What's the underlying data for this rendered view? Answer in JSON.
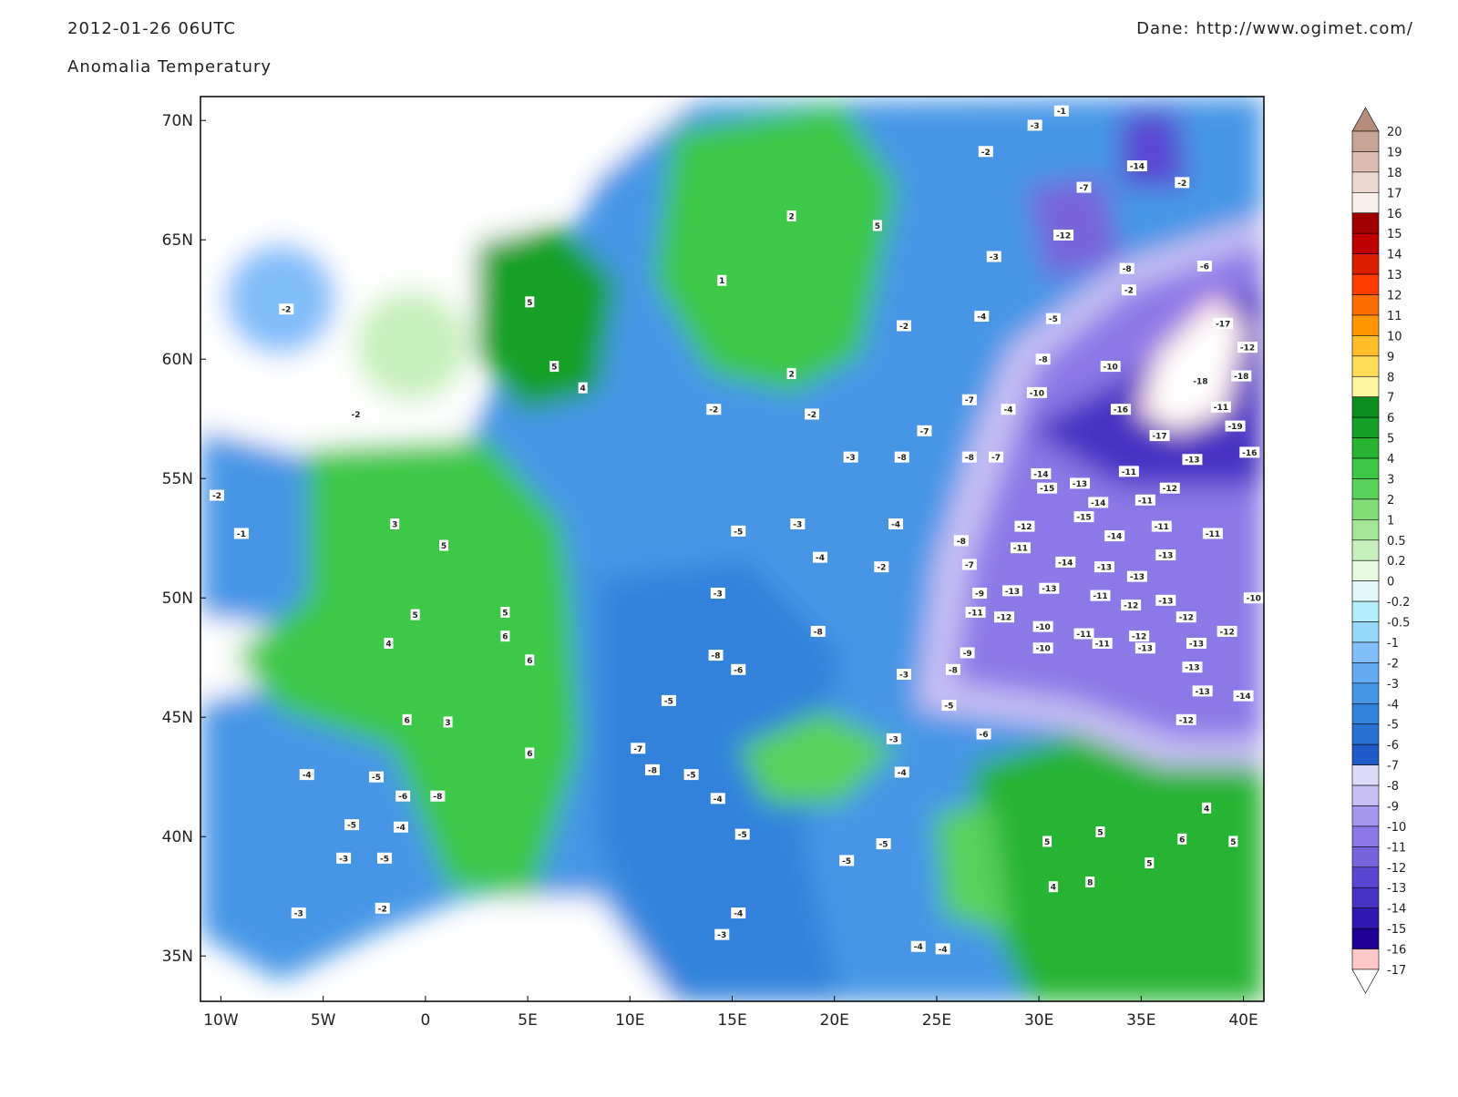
{
  "header": {
    "title": "2012-01-26 06UTC",
    "subtitle": "Anomalia Temperatury",
    "source": "Dane: http://www.ogimet.com/"
  },
  "map": {
    "lonlim": [
      -11,
      41
    ],
    "latlim": [
      33.1,
      71
    ],
    "lonticks": [
      {
        "value": -10,
        "label": "10W"
      },
      {
        "value": -5,
        "label": "5W"
      },
      0,
      {
        "value": 5,
        "label": "5E"
      },
      {
        "value": 10,
        "label": "10E"
      },
      {
        "value": 15,
        "label": "15E"
      },
      {
        "value": 20,
        "label": "20E"
      },
      {
        "value": 25,
        "label": "25E"
      },
      {
        "value": 30,
        "label": "30E"
      },
      {
        "value": 35,
        "label": "35E"
      },
      {
        "value": 40,
        "label": "40E"
      }
    ],
    "latticks": [
      {
        "value": 70,
        "label": "70N"
      },
      {
        "value": 65,
        "label": "65N"
      },
      {
        "value": 60,
        "label": "60N"
      },
      {
        "value": 55,
        "label": "55N"
      },
      {
        "value": 50,
        "label": "50N"
      },
      {
        "value": 45,
        "label": "45N"
      },
      {
        "value": 40,
        "label": "40N"
      },
      {
        "value": 35,
        "label": "35N"
      }
    ],
    "stations": [
      {
        "lon": 34.8,
        "lat": 68.1,
        "value": -14
      },
      {
        "lon": 31.2,
        "lat": 65.2,
        "value": -12
      },
      {
        "lon": 33.5,
        "lat": 59.7,
        "value": -10
      },
      {
        "lon": 37.9,
        "lat": 59.1,
        "value": -18
      },
      {
        "lon": 39.9,
        "lat": 59.3,
        "value": -18
      },
      {
        "lon": 39.0,
        "lat": 61.5,
        "value": -17
      },
      {
        "lon": 40.2,
        "lat": 60.5,
        "value": -12
      },
      {
        "lon": 38.9,
        "lat": 58.0,
        "value": -11
      },
      {
        "lon": 39.6,
        "lat": 57.2,
        "value": -19
      },
      {
        "lon": 34.0,
        "lat": 57.9,
        "value": -16
      },
      {
        "lon": 35.9,
        "lat": 56.8,
        "value": -17
      },
      {
        "lon": 40.3,
        "lat": 56.1,
        "value": -16
      },
      {
        "lon": 37.5,
        "lat": 55.8,
        "value": -13
      },
      {
        "lon": 30.1,
        "lat": 55.2,
        "value": -14
      },
      {
        "lon": 30.4,
        "lat": 54.6,
        "value": -15
      },
      {
        "lon": 32.0,
        "lat": 54.8,
        "value": -13
      },
      {
        "lon": 32.2,
        "lat": 53.4,
        "value": -15
      },
      {
        "lon": 32.9,
        "lat": 54.0,
        "value": -14
      },
      {
        "lon": 34.4,
        "lat": 55.3,
        "value": -11
      },
      {
        "lon": 36.4,
        "lat": 54.6,
        "value": -12
      },
      {
        "lon": 35.2,
        "lat": 54.1,
        "value": -11
      },
      {
        "lon": 33.7,
        "lat": 52.6,
        "value": -14
      },
      {
        "lon": 36.0,
        "lat": 53.0,
        "value": -11
      },
      {
        "lon": 38.5,
        "lat": 52.7,
        "value": -11
      },
      {
        "lon": 36.2,
        "lat": 51.8,
        "value": -13
      },
      {
        "lon": 31.3,
        "lat": 51.5,
        "value": -14
      },
      {
        "lon": 33.2,
        "lat": 51.3,
        "value": -13
      },
      {
        "lon": 34.8,
        "lat": 50.9,
        "value": -13
      },
      {
        "lon": 33.0,
        "lat": 50.1,
        "value": -11
      },
      {
        "lon": 34.5,
        "lat": 49.7,
        "value": -12
      },
      {
        "lon": 36.2,
        "lat": 49.9,
        "value": -13
      },
      {
        "lon": 37.2,
        "lat": 49.2,
        "value": -12
      },
      {
        "lon": 39.2,
        "lat": 48.6,
        "value": -12
      },
      {
        "lon": 40.5,
        "lat": 50.0,
        "value": -10
      },
      {
        "lon": 28.7,
        "lat": 50.3,
        "value": -13
      },
      {
        "lon": 30.5,
        "lat": 50.4,
        "value": -13
      },
      {
        "lon": 28.3,
        "lat": 49.2,
        "value": -12
      },
      {
        "lon": 30.2,
        "lat": 48.8,
        "value": -10
      },
      {
        "lon": 30.2,
        "lat": 47.9,
        "value": -10
      },
      {
        "lon": 32.2,
        "lat": 48.5,
        "value": -11
      },
      {
        "lon": 33.1,
        "lat": 48.1,
        "value": -11
      },
      {
        "lon": 34.9,
        "lat": 48.4,
        "value": -12
      },
      {
        "lon": 35.2,
        "lat": 47.9,
        "value": -13
      },
      {
        "lon": 37.7,
        "lat": 48.1,
        "value": -13
      },
      {
        "lon": 37.5,
        "lat": 47.1,
        "value": -13
      },
      {
        "lon": 38.0,
        "lat": 46.1,
        "value": -13
      },
      {
        "lon": 40.0,
        "lat": 45.9,
        "value": -14
      },
      {
        "lon": 37.2,
        "lat": 44.9,
        "value": -12
      },
      {
        "lon": 29.3,
        "lat": 53.0,
        "value": -12
      },
      {
        "lon": 29.1,
        "lat": 52.1,
        "value": -11
      },
      {
        "lon": 26.9,
        "lat": 49.4,
        "value": -11
      },
      {
        "lon": 27.1,
        "lat": 50.2,
        "value": -9
      },
      {
        "lon": 26.5,
        "lat": 47.7,
        "value": -9
      },
      {
        "lon": 25.8,
        "lat": 47.0,
        "value": -8
      },
      {
        "lon": 26.2,
        "lat": 52.4,
        "value": -8
      },
      {
        "lon": 26.6,
        "lat": 51.4,
        "value": -7
      },
      {
        "lon": 26.6,
        "lat": 55.9,
        "value": -8
      },
      {
        "lon": 27.9,
        "lat": 55.9,
        "value": -7
      },
      {
        "lon": 26.6,
        "lat": 58.3,
        "value": -7
      },
      {
        "lon": 24.4,
        "lat": 57.0,
        "value": -7
      },
      {
        "lon": 23.3,
        "lat": 55.9,
        "value": -8
      },
      {
        "lon": 29.9,
        "lat": 58.6,
        "value": -10
      },
      {
        "lon": 30.2,
        "lat": 60.0,
        "value": -8
      },
      {
        "lon": 28.5,
        "lat": 57.9,
        "value": -4
      },
      {
        "lon": 27.2,
        "lat": 61.8,
        "value": -4
      },
      {
        "lon": 27.8,
        "lat": 64.3,
        "value": -3
      },
      {
        "lon": 30.7,
        "lat": 61.7,
        "value": -5
      },
      {
        "lon": 27.4,
        "lat": 68.7,
        "value": -2
      },
      {
        "lon": 31.1,
        "lat": 70.4,
        "value": -1
      },
      {
        "lon": 29.8,
        "lat": 69.8,
        "value": -3
      },
      {
        "lon": 32.2,
        "lat": 67.2,
        "value": -7
      },
      {
        "lon": 37.0,
        "lat": 67.4,
        "value": -2
      },
      {
        "lon": 34.4,
        "lat": 62.9,
        "value": -2
      },
      {
        "lon": 34.3,
        "lat": 63.8,
        "value": -8
      },
      {
        "lon": 38.1,
        "lat": 63.9,
        "value": -6
      },
      {
        "lon": 23.4,
        "lat": 61.4,
        "value": -2
      },
      {
        "lon": 20.8,
        "lat": 55.9,
        "value": -3
      },
      {
        "lon": 18.9,
        "lat": 57.7,
        "value": -2
      },
      {
        "lon": 14.1,
        "lat": 57.9,
        "value": -2
      },
      {
        "lon": 17.9,
        "lat": 66.0,
        "value": 2
      },
      {
        "lon": 22.1,
        "lat": 65.6,
        "value": 5
      },
      {
        "lon": 14.5,
        "lat": 63.3,
        "value": 1
      },
      {
        "lon": 17.9,
        "lat": 59.4,
        "value": 2
      },
      {
        "lon": 5.1,
        "lat": 62.4,
        "value": 5
      },
      {
        "lon": 6.3,
        "lat": 59.7,
        "value": 5
      },
      {
        "lon": 7.7,
        "lat": 58.8,
        "value": 4
      },
      {
        "lon": -1.5,
        "lat": 53.1,
        "value": 3
      },
      {
        "lon": 0.9,
        "lat": 52.2,
        "value": 5
      },
      {
        "lon": -0.5,
        "lat": 49.3,
        "value": 5
      },
      {
        "lon": -1.8,
        "lat": 48.1,
        "value": 4
      },
      {
        "lon": 3.9,
        "lat": 49.4,
        "value": 5
      },
      {
        "lon": 3.9,
        "lat": 48.4,
        "value": 6
      },
      {
        "lon": 5.1,
        "lat": 47.4,
        "value": 6
      },
      {
        "lon": -0.9,
        "lat": 44.9,
        "value": 6
      },
      {
        "lon": 1.1,
        "lat": 44.8,
        "value": 3
      },
      {
        "lon": 5.1,
        "lat": 43.5,
        "value": 6
      },
      {
        "lon": -5.8,
        "lat": 42.6,
        "value": -4
      },
      {
        "lon": -2.4,
        "lat": 42.5,
        "value": -5
      },
      {
        "lon": -1.1,
        "lat": 41.7,
        "value": -6
      },
      {
        "lon": 0.6,
        "lat": 41.7,
        "value": -8
      },
      {
        "lon": -3.6,
        "lat": 40.5,
        "value": -5
      },
      {
        "lon": -1.2,
        "lat": 40.4,
        "value": -4
      },
      {
        "lon": -4.0,
        "lat": 39.1,
        "value": -3
      },
      {
        "lon": -2.0,
        "lat": 39.1,
        "value": -5
      },
      {
        "lon": -2.1,
        "lat": 37.0,
        "value": -2
      },
      {
        "lon": -6.2,
        "lat": 36.8,
        "value": -3
      },
      {
        "lon": 10.4,
        "lat": 43.7,
        "value": -7
      },
      {
        "lon": 11.1,
        "lat": 42.8,
        "value": -8
      },
      {
        "lon": 13.0,
        "lat": 42.6,
        "value": -5
      },
      {
        "lon": 14.3,
        "lat": 41.6,
        "value": -4
      },
      {
        "lon": 15.5,
        "lat": 40.1,
        "value": -5
      },
      {
        "lon": 15.3,
        "lat": 36.8,
        "value": -4
      },
      {
        "lon": 14.5,
        "lat": 35.9,
        "value": -3
      },
      {
        "lon": 30.4,
        "lat": 39.8,
        "value": 5
      },
      {
        "lon": 33.0,
        "lat": 40.2,
        "value": 5
      },
      {
        "lon": 35.4,
        "lat": 38.9,
        "value": 5
      },
      {
        "lon": 32.5,
        "lat": 38.1,
        "value": 8
      },
      {
        "lon": 37.0,
        "lat": 39.9,
        "value": 6
      },
      {
        "lon": 39.5,
        "lat": 39.8,
        "value": 5
      },
      {
        "lon": 30.7,
        "lat": 37.9,
        "value": 4
      },
      {
        "lon": 38.2,
        "lat": 41.2,
        "value": 4
      },
      {
        "lon": 18.2,
        "lat": 53.1,
        "value": -3
      },
      {
        "lon": 19.3,
        "lat": 51.7,
        "value": -4
      },
      {
        "lon": 22.3,
        "lat": 51.3,
        "value": -2
      },
      {
        "lon": 23.0,
        "lat": 53.1,
        "value": -4
      },
      {
        "lon": 15.3,
        "lat": 52.8,
        "value": -5
      },
      {
        "lon": 14.3,
        "lat": 50.2,
        "value": -3
      },
      {
        "lon": 19.2,
        "lat": 48.6,
        "value": -8
      },
      {
        "lon": 14.2,
        "lat": 47.6,
        "value": -8
      },
      {
        "lon": 15.3,
        "lat": 47.0,
        "value": -6
      },
      {
        "lon": 11.9,
        "lat": 45.7,
        "value": -5
      },
      {
        "lon": 23.4,
        "lat": 46.8,
        "value": -3
      },
      {
        "lon": 25.6,
        "lat": 45.5,
        "value": -5
      },
      {
        "lon": 27.3,
        "lat": 44.3,
        "value": -6
      },
      {
        "lon": 22.9,
        "lat": 44.1,
        "value": -3
      },
      {
        "lon": 23.3,
        "lat": 42.7,
        "value": -4
      },
      {
        "lon": 20.6,
        "lat": 39.0,
        "value": -5
      },
      {
        "lon": 22.4,
        "lat": 39.7,
        "value": -5
      },
      {
        "lon": 24.1,
        "lat": 35.4,
        "value": -4
      },
      {
        "lon": 25.3,
        "lat": 35.3,
        "value": -4
      },
      {
        "lon": -3.4,
        "lat": 57.7,
        "value": -2
      },
      {
        "lon": -10.2,
        "lat": 54.3,
        "value": -2
      },
      {
        "lon": -9.0,
        "lat": 52.7,
        "value": -1
      },
      {
        "lon": -6.8,
        "lat": 62.1,
        "value": -2
      }
    ]
  },
  "colorbar": {
    "levels": [
      20,
      19,
      18,
      17,
      16,
      15,
      14,
      13,
      12,
      11,
      10,
      9,
      8,
      7,
      6,
      5,
      4,
      3,
      2,
      1,
      0.5,
      0.2,
      0,
      -0.2,
      -0.5,
      -1,
      -2,
      -3,
      -4,
      -5,
      -6,
      -7,
      -8,
      -9,
      -10,
      -11,
      -12,
      -13,
      -14,
      -15,
      -16,
      -17
    ],
    "colors": [
      "#b48c7c",
      "#c8a496",
      "#dcbcb0",
      "#ecd8d0",
      "#f8eeea",
      "#a00000",
      "#be0000",
      "#dc1e00",
      "#ff3c00",
      "#ff6e00",
      "#ff9600",
      "#ffbe28",
      "#ffdc5a",
      "#fff5a0",
      "#0a8c1e",
      "#14a028",
      "#28b432",
      "#3cc846",
      "#5ad25a",
      "#82dc78",
      "#a5e696",
      "#c8f0be",
      "#e6fae0",
      "#e1f9fa",
      "#b4eefa",
      "#96d7fa",
      "#82befa",
      "#64aaf0",
      "#4696e6",
      "#3282dc",
      "#2870d2",
      "#1e5ac8",
      "#dcdcfa",
      "#c8c0f5",
      "#a596f0",
      "#8c78e6",
      "#7864dc",
      "#5a46d2",
      "#4632c3",
      "#3219b4",
      "#1e0096",
      "#ffc8c8",
      "#ffffff"
    ]
  }
}
